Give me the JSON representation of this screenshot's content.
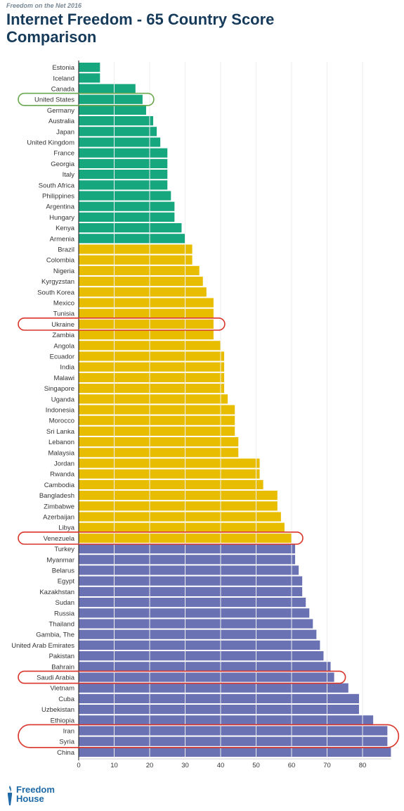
{
  "header": {
    "kicker": "Freedom on the Net 2016",
    "title": "Internet Freedom - 65 Country Score Comparison"
  },
  "footer": {
    "logo_line1": "Freedom",
    "logo_line2": "House"
  },
  "colors": {
    "free": "#16a77f",
    "partly_free": "#e8bd00",
    "not_free": "#6b72b3",
    "highlight_green": "#6aa84f",
    "highlight_red": "#d9352b",
    "axis": "#333333",
    "gridline": "#eeeeee",
    "label": "#333333"
  },
  "chart_data": {
    "type": "bar",
    "orientation": "horizontal",
    "title": "Internet Freedom - 65 Country Score Comparison",
    "xlabel": "",
    "ylabel": "",
    "xlim": [
      0,
      88
    ],
    "x_ticks": [
      0,
      10,
      20,
      30,
      40,
      50,
      60,
      70,
      80
    ],
    "grid": false,
    "categories": [
      "Estonia",
      "Iceland",
      "Canada",
      "United States",
      "Germany",
      "Australia",
      "Japan",
      "United Kingdom",
      "France",
      "Georgia",
      "Italy",
      "South Africa",
      "Philippines",
      "Argentina",
      "Hungary",
      "Kenya",
      "Armenia",
      "Brazil",
      "Colombia",
      "Nigeria",
      "Kyrgyzstan",
      "South Korea",
      "Mexico",
      "Tunisia",
      "Ukraine",
      "Zambia",
      "Angola",
      "Ecuador",
      "India",
      "Malawi",
      "Singapore",
      "Uganda",
      "Indonesia",
      "Morocco",
      "Sri Lanka",
      "Lebanon",
      "Malaysia",
      "Jordan",
      "Rwanda",
      "Cambodia",
      "Bangladesh",
      "Zimbabwe",
      "Azerbaijan",
      "Libya",
      "Venezuela",
      "Turkey",
      "Myanmar",
      "Belarus",
      "Egypt",
      "Kazakhstan",
      "Sudan",
      "Russia",
      "Thailand",
      "Gambia, The",
      "United Arab Emirates",
      "Pakistan",
      "Bahrain",
      "Saudi Arabia",
      "Vietnam",
      "Cuba",
      "Uzbekistan",
      "Ethiopia",
      "Iran",
      "Syria",
      "China"
    ],
    "values": [
      6,
      6,
      16,
      18,
      19,
      21,
      22,
      23,
      25,
      25,
      25,
      25,
      26,
      27,
      27,
      29,
      30,
      32,
      32,
      34,
      35,
      36,
      38,
      38,
      38,
      38,
      40,
      41,
      41,
      41,
      41,
      42,
      44,
      44,
      44,
      45,
      45,
      51,
      51,
      52,
      56,
      56,
      57,
      58,
      60,
      61,
      61,
      62,
      63,
      63,
      64,
      65,
      66,
      67,
      68,
      69,
      71,
      72,
      76,
      79,
      79,
      83,
      87,
      87,
      88
    ],
    "status_groups": [
      {
        "status": "free",
        "count": 17
      },
      {
        "status": "partly_free",
        "count": 28
      },
      {
        "status": "not_free",
        "count": 20
      }
    ],
    "highlights": [
      {
        "countries": [
          "United States"
        ],
        "color": "green"
      },
      {
        "countries": [
          "Ukraine"
        ],
        "color": "red"
      },
      {
        "countries": [
          "Venezuela"
        ],
        "color": "red"
      },
      {
        "countries": [
          "Saudi Arabia"
        ],
        "color": "red"
      },
      {
        "countries": [
          "Iran",
          "Syria"
        ],
        "color": "red"
      }
    ]
  }
}
